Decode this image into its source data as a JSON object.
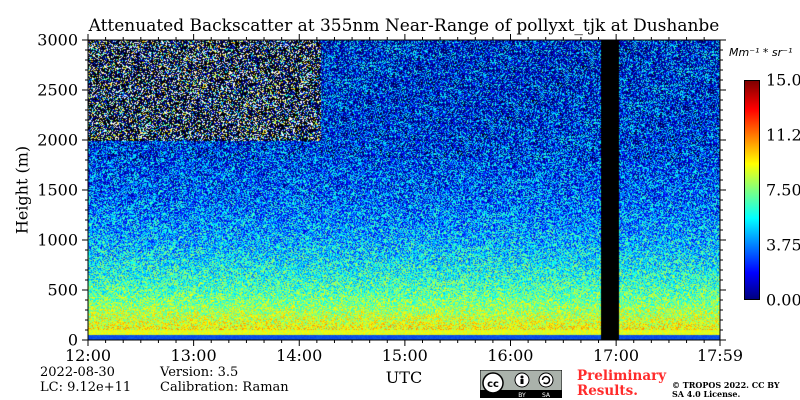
{
  "chart_data": {
    "type": "heatmap",
    "title": "Attenuated Backscatter at 355nm Near-Range of pollyxt_tjk at Dushanbe",
    "xlabel": "UTC",
    "ylabel": "Height (m)",
    "x_range": [
      "12:00",
      "17:59"
    ],
    "x_ticks": [
      "12:00",
      "13:00",
      "14:00",
      "15:00",
      "16:00",
      "17:00",
      "17:59"
    ],
    "ylim": [
      0,
      3000
    ],
    "y_ticks": [
      "0",
      "500",
      "1000",
      "1500",
      "2000",
      "2500",
      "3000"
    ],
    "colorbar": {
      "units": "Mm⁻¹ * sr⁻¹",
      "range": [
        0,
        15
      ],
      "ticks": [
        "0.00",
        "3.75",
        "7.50",
        "11.25",
        "15.00"
      ],
      "colormap": "jet"
    },
    "data_gap": {
      "start_hour": 16.85,
      "end_hour": 17.02
    },
    "profile_description": "Backscatter decreasing with height: ~8 Mm-1 sr-1 near 100-200 m, ~4-5 around 1000 m, ~1-2 above 2000 m; noisy signal above 2000 m before 14:00"
  },
  "info": {
    "date": "2022-08-30",
    "lc": "LC: 9.12e+11",
    "version": "Version: 3.5",
    "calibration": "Calibration: Raman"
  },
  "watermark": {
    "preliminary": "Preliminary Results.",
    "copyright": "© TROPOS 2022. CC BY SA 4.0 License.",
    "license_badge": [
      "BY",
      "SA"
    ]
  },
  "colors": {
    "gap": "#000000",
    "near_ground_band": "#0a46e6"
  }
}
